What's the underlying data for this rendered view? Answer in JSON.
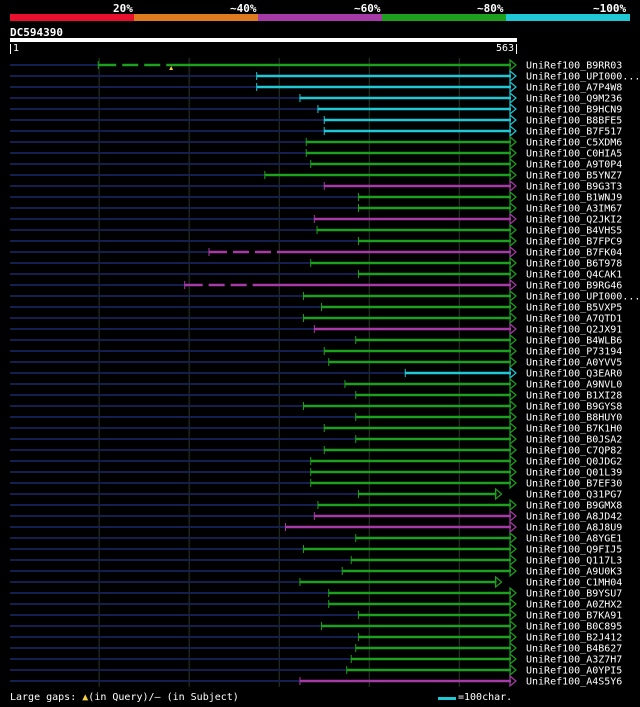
{
  "colors": {
    "red": "#e8102c",
    "orange": "#e07a1e",
    "purple": "#a63aa6",
    "green": "#1da01d",
    "cyan": "#1ec8d4",
    "unaligned": "#13204f",
    "grid": "#2b3a2b"
  },
  "legend": {
    "labels": [
      "20%",
      "~40%",
      "~60%",
      "~80%",
      "~100%"
    ],
    "bars": [
      "red",
      "orange",
      "purple",
      "green",
      "cyan"
    ]
  },
  "query": {
    "title": "DC594390",
    "start": "1",
    "end": "563"
  },
  "footer": {
    "gaps_prefix": "Large gaps:",
    "gaps_query": "(in Query)",
    "gaps_subject": "/– (in Subject)",
    "scale_text": "=100char."
  },
  "chart_data": {
    "type": "alignment-overview",
    "query_length": 563,
    "hits": [
      {
        "name": "UniRef100_B9RR03",
        "start": 99,
        "color": "green",
        "gap": true
      },
      {
        "name": "UniRef100_UPI000...",
        "start": 275,
        "color": "cyan"
      },
      {
        "name": "UniRef100_A7P4W8",
        "start": 275,
        "color": "cyan"
      },
      {
        "name": "UniRef100_Q9M236",
        "start": 323,
        "color": "cyan"
      },
      {
        "name": "UniRef100_B9HCN9",
        "start": 343,
        "color": "cyan"
      },
      {
        "name": "UniRef100_B8BFE5",
        "start": 350,
        "color": "cyan"
      },
      {
        "name": "UniRef100_B7F517",
        "start": 350,
        "color": "cyan"
      },
      {
        "name": "UniRef100_C5XDM6",
        "start": 330,
        "color": "green"
      },
      {
        "name": "UniRef100_C0HIA5",
        "start": 330,
        "color": "green"
      },
      {
        "name": "UniRef100_A9T0P4",
        "start": 335,
        "color": "green"
      },
      {
        "name": "UniRef100_B5YNZ7",
        "start": 284,
        "color": "green"
      },
      {
        "name": "UniRef100_B9G3T3",
        "start": 350,
        "color": "purple"
      },
      {
        "name": "UniRef100_B1WNJ9",
        "start": 388,
        "color": "green"
      },
      {
        "name": "UniRef100_A3IM67",
        "start": 388,
        "color": "green"
      },
      {
        "name": "UniRef100_Q2JKI2",
        "start": 339,
        "color": "purple"
      },
      {
        "name": "UniRef100_B4VHS5",
        "start": 342,
        "color": "green"
      },
      {
        "name": "UniRef100_B7FPC9",
        "start": 388,
        "color": "green"
      },
      {
        "name": "UniRef100_B7FK04",
        "start": 222,
        "color": "purple",
        "gap": true
      },
      {
        "name": "UniRef100_B6T978",
        "start": 335,
        "color": "green"
      },
      {
        "name": "UniRef100_Q4CAK1",
        "start": 388,
        "color": "green"
      },
      {
        "name": "UniRef100_B9RG46",
        "start": 195,
        "color": "purple",
        "gap": true
      },
      {
        "name": "UniRef100_UPI000...",
        "start": 327,
        "color": "green"
      },
      {
        "name": "UniRef100_B5VXP5",
        "start": 347,
        "color": "green"
      },
      {
        "name": "UniRef100_A7QTD1",
        "start": 327,
        "color": "green"
      },
      {
        "name": "UniRef100_Q2JX91",
        "start": 339,
        "color": "purple"
      },
      {
        "name": "UniRef100_B4WLB6",
        "start": 385,
        "color": "green"
      },
      {
        "name": "UniRef100_P73194",
        "start": 350,
        "color": "green"
      },
      {
        "name": "UniRef100_A0YVV5",
        "start": 355,
        "color": "green"
      },
      {
        "name": "UniRef100_Q3EAR0",
        "start": 440,
        "color": "cyan"
      },
      {
        "name": "UniRef100_A9NVL0",
        "start": 373,
        "color": "green"
      },
      {
        "name": "UniRef100_B1XI28",
        "start": 385,
        "color": "green"
      },
      {
        "name": "UniRef100_B9GYS8",
        "start": 327,
        "color": "green"
      },
      {
        "name": "UniRef100_B8HUY0",
        "start": 385,
        "color": "green"
      },
      {
        "name": "UniRef100_B7K1H0",
        "start": 350,
        "color": "green"
      },
      {
        "name": "UniRef100_B0JSA2",
        "start": 385,
        "color": "green"
      },
      {
        "name": "UniRef100_C7QP82",
        "start": 350,
        "color": "green"
      },
      {
        "name": "UniRef100_Q0JDG2",
        "start": 335,
        "color": "green"
      },
      {
        "name": "UniRef100_Q01L39",
        "start": 335,
        "color": "green"
      },
      {
        "name": "UniRef100_B7EF30",
        "start": 335,
        "color": "green"
      },
      {
        "name": "UniRef100_Q31PG7",
        "start": 388,
        "color": "green",
        "end": 547
      },
      {
        "name": "UniRef100_B9GMX8",
        "start": 343,
        "color": "green"
      },
      {
        "name": "UniRef100_A8JD42",
        "start": 339,
        "color": "purple"
      },
      {
        "name": "UniRef100_A8J8U9",
        "start": 307,
        "color": "purple"
      },
      {
        "name": "UniRef100_A8YGE1",
        "start": 385,
        "color": "green"
      },
      {
        "name": "UniRef100_Q9FIJ5",
        "start": 327,
        "color": "green"
      },
      {
        "name": "UniRef100_Q117L3",
        "start": 380,
        "color": "green"
      },
      {
        "name": "UniRef100_A9U0K3",
        "start": 370,
        "color": "green"
      },
      {
        "name": "UniRef100_C1MH04",
        "start": 323,
        "color": "green",
        "end": 547
      },
      {
        "name": "UniRef100_B9YSU7",
        "start": 355,
        "color": "green"
      },
      {
        "name": "UniRef100_A0ZHX2",
        "start": 355,
        "color": "green"
      },
      {
        "name": "UniRef100_B7KA91",
        "start": 388,
        "color": "green"
      },
      {
        "name": "UniRef100_B0C895",
        "start": 347,
        "color": "green"
      },
      {
        "name": "UniRef100_B2J412",
        "start": 388,
        "color": "green"
      },
      {
        "name": "UniRef100_B4B627",
        "start": 385,
        "color": "green"
      },
      {
        "name": "UniRef100_A3Z7H7",
        "start": 380,
        "color": "green"
      },
      {
        "name": "UniRef100_A0YPI5",
        "start": 375,
        "color": "green"
      },
      {
        "name": "UniRef100_A4S5Y6",
        "start": 323,
        "color": "purple"
      }
    ]
  }
}
